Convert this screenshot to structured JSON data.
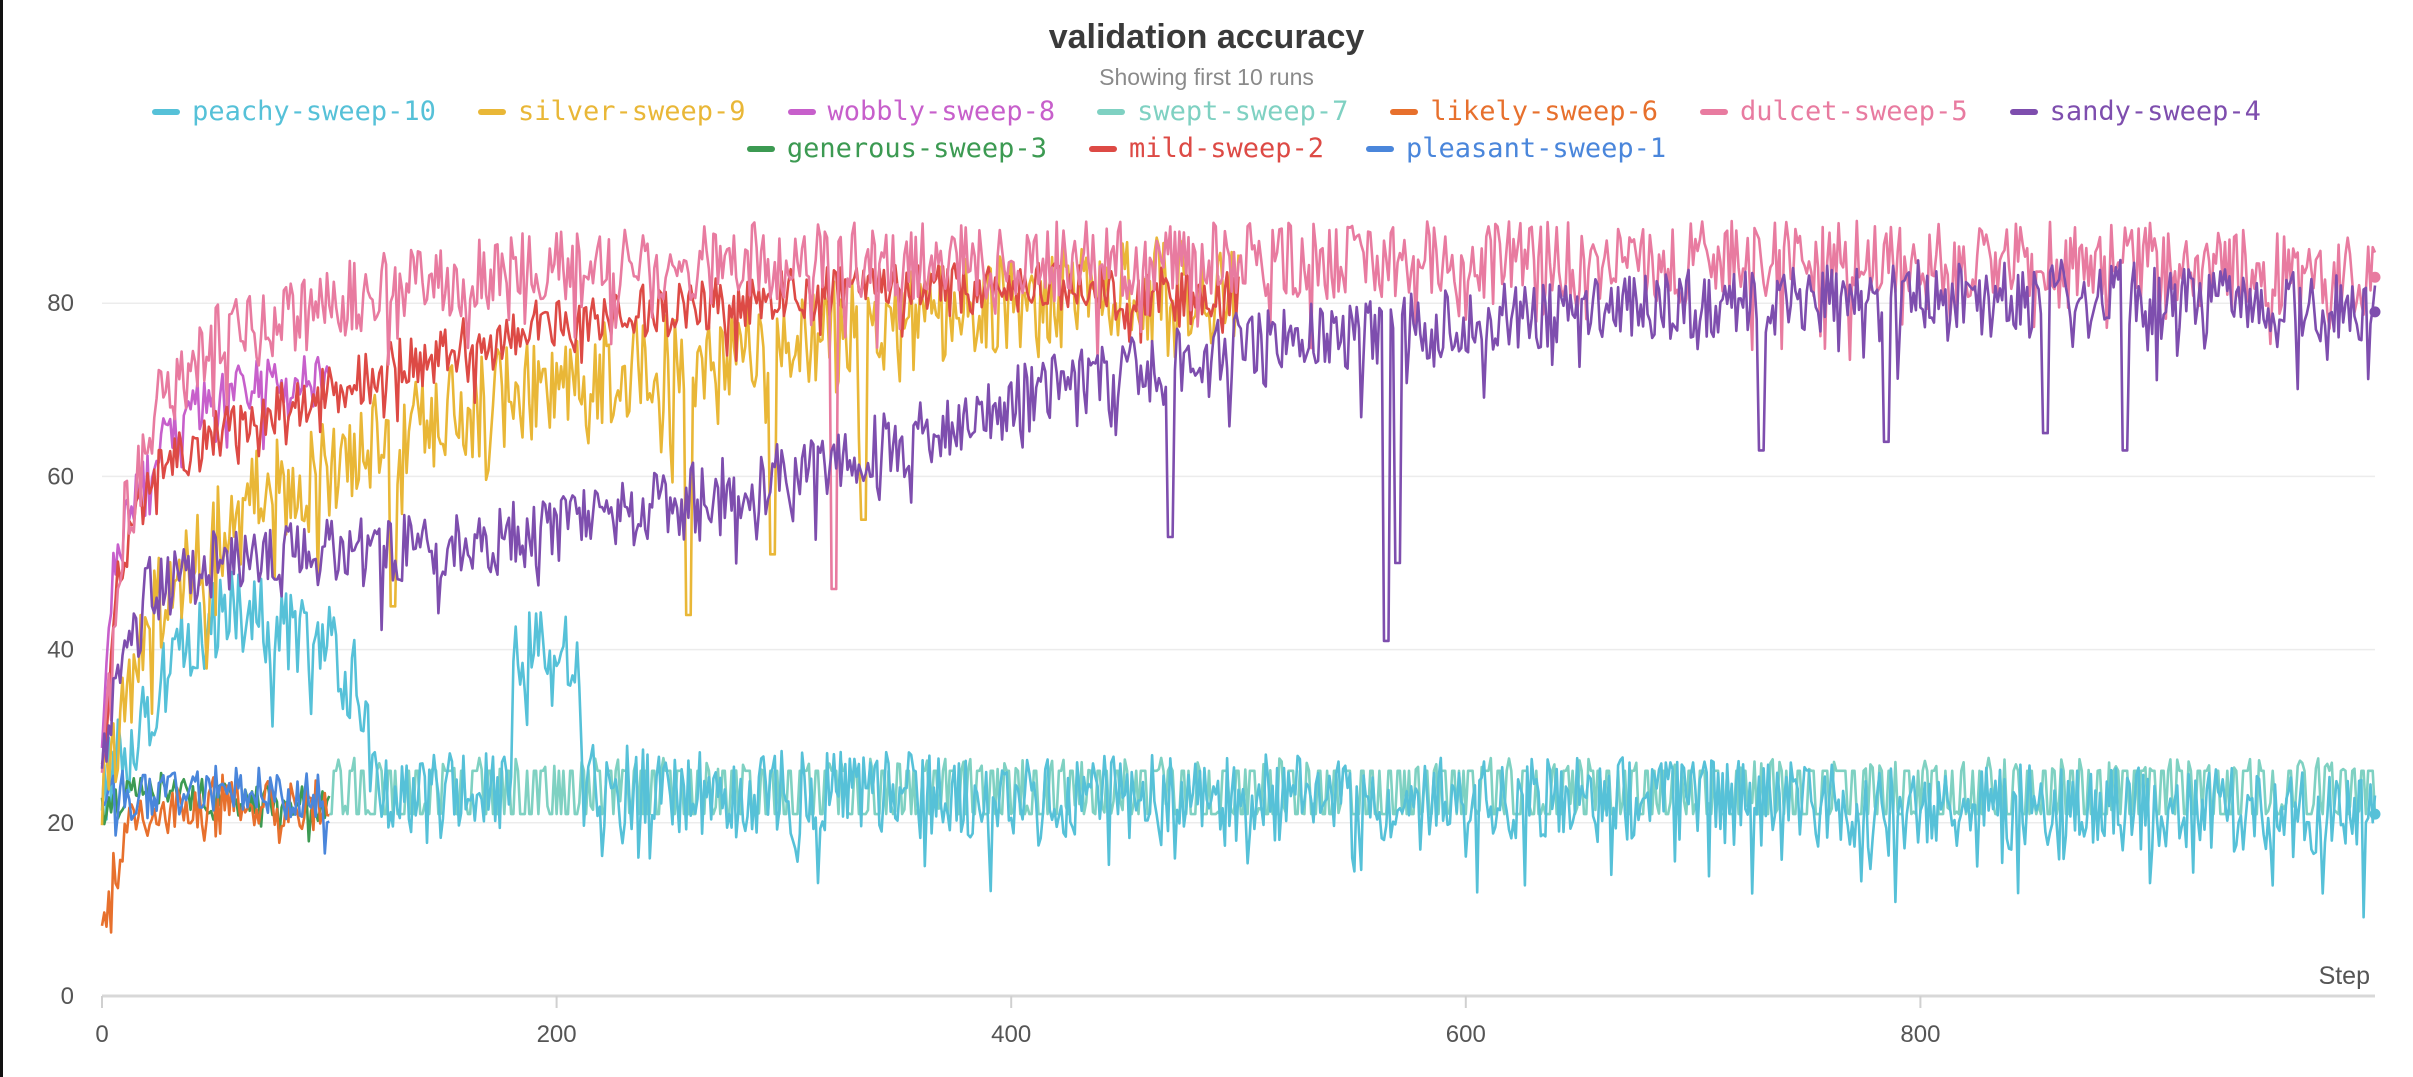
{
  "chart_data": {
    "type": "line",
    "title": "validation accuracy",
    "subtitle": "Showing first 10 runs",
    "xlabel": "Step",
    "ylabel": "",
    "xlim": [
      0,
      1000
    ],
    "ylim": [
      0,
      100
    ],
    "x_ticks": [
      0,
      200,
      400,
      600,
      800
    ],
    "y_ticks": [
      0,
      20,
      40,
      60,
      80
    ],
    "grid": true,
    "legend_position": "top",
    "series": [
      {
        "name": "peachy-sweep-10",
        "color": "#56c1d8",
        "pattern": "plateau_noise",
        "points": [
          [
            0,
            24
          ],
          [
            20,
            33
          ],
          [
            40,
            42
          ],
          [
            60,
            45
          ],
          [
            80,
            42
          ],
          [
            100,
            40
          ],
          [
            115,
            35
          ],
          [
            120,
            24
          ],
          [
            180,
            23
          ],
          [
            181,
            40
          ],
          [
            210,
            40
          ],
          [
            211,
            24
          ],
          [
            400,
            23
          ],
          [
            600,
            23
          ],
          [
            800,
            22
          ],
          [
            1000,
            21
          ]
        ],
        "noise": 5,
        "end_value": 21
      },
      {
        "name": "silver-sweep-9",
        "color": "#e9b737",
        "points": [
          [
            0,
            22
          ],
          [
            10,
            35
          ],
          [
            30,
            48
          ],
          [
            60,
            56
          ],
          [
            100,
            62
          ],
          [
            150,
            67
          ],
          [
            200,
            71
          ],
          [
            250,
            73
          ],
          [
            300,
            76
          ],
          [
            350,
            78
          ],
          [
            400,
            80
          ],
          [
            450,
            82
          ],
          [
            500,
            81
          ]
        ],
        "noise": 6,
        "dips": [
          [
            128,
            45
          ],
          [
            258,
            44
          ],
          [
            295,
            51
          ],
          [
            335,
            55
          ]
        ]
      },
      {
        "name": "wobbly-sweep-8",
        "color": "#c75fcb",
        "points": [
          [
            0,
            30
          ],
          [
            5,
            50
          ],
          [
            20,
            62
          ],
          [
            40,
            68
          ],
          [
            60,
            70
          ],
          [
            80,
            71
          ],
          [
            100,
            72
          ]
        ],
        "noise": 3
      },
      {
        "name": "swept-sweep-7",
        "color": "#7fd1c2",
        "pattern": "square_wave",
        "points": [
          [
            100,
            21
          ],
          [
            1000,
            21
          ]
        ],
        "low": 21,
        "high": 26
      },
      {
        "name": "likely-sweep-6",
        "color": "#e7702d",
        "points": [
          [
            0,
            8
          ],
          [
            5,
            15
          ],
          [
            10,
            19
          ],
          [
            20,
            21
          ],
          [
            40,
            22
          ],
          [
            60,
            23
          ],
          [
            80,
            22
          ],
          [
            100,
            22
          ]
        ],
        "noise": 3
      },
      {
        "name": "dulcet-sweep-5",
        "color": "#e87ba0",
        "points": [
          [
            0,
            25
          ],
          [
            10,
            55
          ],
          [
            25,
            68
          ],
          [
            50,
            76
          ],
          [
            100,
            80
          ],
          [
            150,
            83
          ],
          [
            200,
            84
          ],
          [
            300,
            85
          ],
          [
            500,
            85
          ],
          [
            700,
            85
          ],
          [
            900,
            85
          ],
          [
            1000,
            83
          ]
        ],
        "noise": 4.5,
        "dips": [
          [
            322,
            47
          ]
        ],
        "end_value": 83
      },
      {
        "name": "sandy-sweep-4",
        "color": "#7e4eae",
        "points": [
          [
            0,
            25
          ],
          [
            10,
            42
          ],
          [
            20,
            47
          ],
          [
            50,
            50
          ],
          [
            100,
            51
          ],
          [
            150,
            52
          ],
          [
            200,
            54
          ],
          [
            250,
            57
          ],
          [
            300,
            60
          ],
          [
            350,
            64
          ],
          [
            400,
            69
          ],
          [
            450,
            72
          ],
          [
            500,
            75
          ],
          [
            600,
            78
          ],
          [
            700,
            80
          ],
          [
            800,
            81
          ],
          [
            900,
            81
          ],
          [
            1000,
            79
          ]
        ],
        "noise": 4,
        "dips": [
          [
            470,
            53
          ],
          [
            565,
            41
          ],
          [
            570,
            50
          ],
          [
            730,
            63
          ],
          [
            785,
            64
          ],
          [
            855,
            65
          ],
          [
            890,
            63
          ]
        ],
        "end_value": 79
      },
      {
        "name": "generous-sweep-3",
        "color": "#3c9a52",
        "points": [
          [
            0,
            22
          ],
          [
            20,
            24
          ],
          [
            50,
            23
          ],
          [
            100,
            22
          ]
        ],
        "noise": 2
      },
      {
        "name": "mild-sweep-2",
        "color": "#dd4a45",
        "points": [
          [
            0,
            25
          ],
          [
            5,
            45
          ],
          [
            15,
            58
          ],
          [
            30,
            62
          ],
          [
            60,
            66
          ],
          [
            100,
            70
          ],
          [
            150,
            75
          ],
          [
            200,
            78
          ],
          [
            300,
            81
          ],
          [
            400,
            82
          ],
          [
            500,
            81
          ]
        ],
        "noise": 3
      },
      {
        "name": "pleasant-sweep-1",
        "color": "#4a86db",
        "points": [
          [
            0,
            23
          ],
          [
            50,
            24
          ],
          [
            100,
            23
          ]
        ],
        "noise": 3
      }
    ]
  }
}
